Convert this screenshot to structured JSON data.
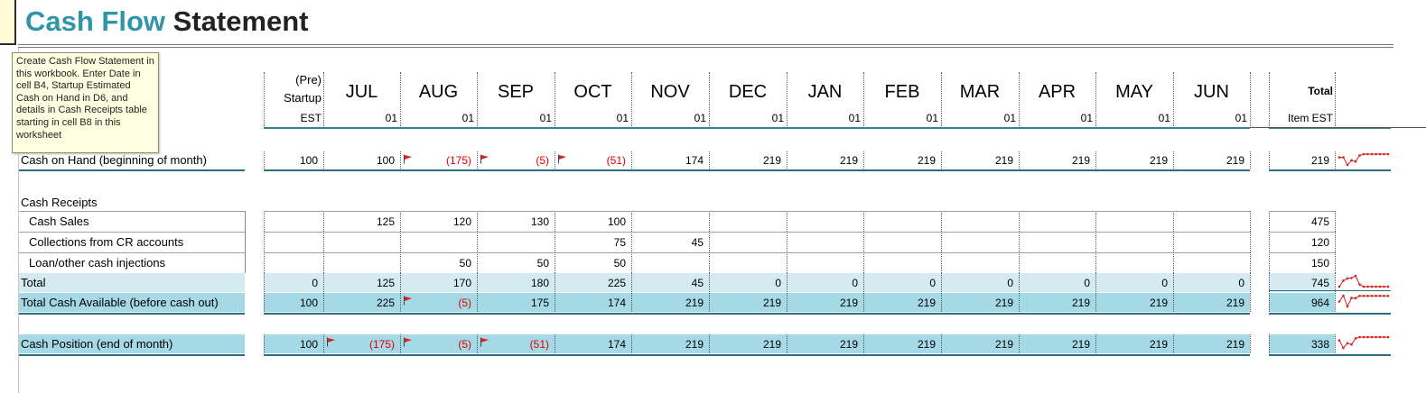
{
  "title": {
    "accent": "Cash Flow",
    "rest": "Statement"
  },
  "tooltip": "Create Cash Flow Statement in this workbook. Enter Date in cell B4, Startup Estimated Cash on Hand in D6, and details in Cash Receipts table starting in cell B8 in this worksheet",
  "header": {
    "prestartup": [
      "(Pre)",
      "Startup",
      "EST"
    ],
    "months": [
      "JUL",
      "AUG",
      "SEP",
      "OCT",
      "NOV",
      "DEC",
      "JAN",
      "FEB",
      "MAR",
      "APR",
      "MAY",
      "JUN"
    ],
    "days": [
      "01",
      "01",
      "01",
      "01",
      "01",
      "01",
      "01",
      "01",
      "01",
      "01",
      "01",
      "01"
    ],
    "total": [
      "Total",
      "Item EST"
    ]
  },
  "rows": {
    "cash_on_hand": {
      "label": "Cash on Hand (beginning of month)",
      "prestartup": "100",
      "values": [
        "100",
        "(175)",
        "(5)",
        "(51)",
        "174",
        "219",
        "219",
        "219",
        "219",
        "219",
        "219",
        "219"
      ],
      "total": "219",
      "spark": [
        100,
        100,
        -175,
        -5,
        -51,
        174,
        219,
        219,
        219,
        219,
        219,
        219,
        219
      ]
    },
    "cash_receipts_heading": "Cash Receipts",
    "cash_sales": {
      "label": "Cash Sales",
      "prestartup": "",
      "values": [
        "125",
        "120",
        "130",
        "100",
        "",
        "",
        "",
        "",
        "",
        "",
        "",
        ""
      ],
      "total": "475"
    },
    "collections": {
      "label": "Collections from CR accounts",
      "prestartup": "",
      "values": [
        "",
        "",
        "",
        "75",
        "45",
        "",
        "",
        "",
        "",
        "",
        "",
        ""
      ],
      "total": "120"
    },
    "loan": {
      "label": "Loan/other cash injections",
      "prestartup": "",
      "values": [
        "",
        "50",
        "50",
        "50",
        "",
        "",
        "",
        "",
        "",
        "",
        "",
        ""
      ],
      "total": "150"
    },
    "receipts_total": {
      "label": "Total",
      "prestartup": "0",
      "values": [
        "125",
        "170",
        "180",
        "225",
        "45",
        "0",
        "0",
        "0",
        "0",
        "0",
        "0",
        "0"
      ],
      "total": "745",
      "spark": [
        0,
        125,
        170,
        180,
        225,
        45,
        0,
        0,
        0,
        0,
        0,
        0,
        0
      ]
    },
    "total_available": {
      "label": "Total Cash Available (before cash out)",
      "prestartup": "100",
      "values": [
        "225",
        "(5)",
        "175",
        "174",
        "219",
        "219",
        "219",
        "219",
        "219",
        "219",
        "219",
        "219"
      ],
      "total": "964",
      "spark": [
        100,
        225,
        -5,
        175,
        174,
        219,
        219,
        219,
        219,
        219,
        219,
        219,
        219
      ]
    },
    "cash_position": {
      "label": "Cash Position (end of month)",
      "prestartup": "100",
      "values": [
        "(175)",
        "(5)",
        "(51)",
        "174",
        "219",
        "219",
        "219",
        "219",
        "219",
        "219",
        "219",
        "219"
      ],
      "total": "338",
      "spark": [
        100,
        -175,
        -5,
        -51,
        174,
        219,
        219,
        219,
        219,
        219,
        219,
        219,
        219
      ]
    }
  },
  "colors": {
    "accent": "#3095a7",
    "band_light": "#d4ecf1",
    "band_mid": "#a6d9e6",
    "negative": "#e00000",
    "spark": "#d62020"
  },
  "flag_icon": "red-flag-icon"
}
